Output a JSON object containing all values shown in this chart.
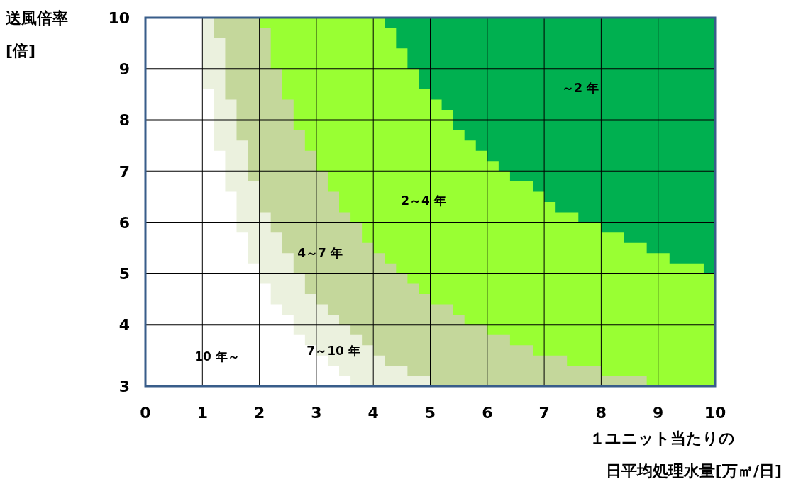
{
  "chart_data": {
    "type": "area",
    "xlabel": "１ユニット当たりの日平均処理水量[万㎥/日]",
    "ylabel": "送風倍率[倍]",
    "series": [
      {
        "color": "#00b050",
        "x": [
          0,
          10
        ],
        "values": [
          10,
          10
        ]
      },
      {
        "color": "#99ff33",
        "x": [
          2,
          4.2,
          4.2,
          4.4,
          4.4,
          4.6,
          4.6,
          4.8,
          4.8,
          5,
          5,
          5.2,
          5.2,
          5.4,
          5.4,
          5.6,
          5.6,
          5.8,
          5.8,
          6,
          6,
          6.2,
          6.2,
          6.4,
          6.4,
          6.8,
          6.8,
          7,
          7,
          7.2,
          7.2,
          7.6,
          7.6,
          8,
          8,
          8.4,
          8.4,
          8.8,
          8.8,
          9.2,
          9.2,
          9.8,
          9.8,
          10
        ],
        "values": [
          10,
          10,
          9.8,
          9.8,
          9.4,
          9.4,
          9,
          9,
          8.6,
          8.6,
          8.4,
          8.4,
          8.2,
          8.2,
          7.8,
          7.8,
          7.6,
          7.6,
          7.4,
          7.4,
          7.2,
          7.2,
          7,
          7,
          6.8,
          6.8,
          6.6,
          6.6,
          6.4,
          6.4,
          6.2,
          6.2,
          6,
          6,
          5.8,
          5.8,
          5.6,
          5.6,
          5.4,
          5.4,
          5.2,
          5.2,
          5,
          5
        ]
      },
      {
        "color": "#c4d79b",
        "x": [
          0,
          2,
          2,
          2.2,
          2.2,
          2.4,
          2.4,
          2.6,
          2.6,
          2.8,
          2.8,
          3,
          3,
          3.2,
          3.2,
          3.4,
          3.4,
          3.6,
          3.6,
          3.8,
          3.8,
          4,
          4,
          4.2,
          4.2,
          4.4,
          4.4,
          4.6,
          4.6,
          4.8,
          4.8,
          5,
          5,
          5.4,
          5.4,
          5.6,
          5.6,
          6,
          6,
          6.4,
          6.4,
          6.8,
          6.8,
          7.4,
          7.4,
          8,
          8,
          8.8,
          8.8
        ],
        "values": [
          10,
          10,
          9.8,
          9.8,
          9,
          9,
          8.4,
          8.4,
          7.8,
          7.8,
          7.4,
          7.4,
          7,
          7,
          6.6,
          6.6,
          6.2,
          6.2,
          6,
          6,
          5.6,
          5.6,
          5.4,
          5.4,
          5.2,
          5.2,
          5,
          5,
          4.8,
          4.8,
          4.6,
          4.6,
          4.4,
          4.4,
          4.2,
          4.2,
          4,
          4,
          3.8,
          3.8,
          3.6,
          3.6,
          3.4,
          3.4,
          3.2,
          3.2,
          3,
          3,
          2.8
        ]
      },
      {
        "color": "#ebf1de",
        "x": [
          0,
          1.2,
          1.2,
          1.4,
          1.4,
          1.6,
          1.6,
          1.8,
          1.8,
          2,
          2,
          2.2,
          2.2,
          2.4,
          2.4,
          2.6,
          2.6,
          2.8,
          2.8,
          3,
          3,
          3.2,
          3.2,
          3.4,
          3.4,
          3.6,
          3.6,
          3.8,
          3.8,
          4,
          4,
          4.2,
          4.2,
          4.6,
          4.6,
          5,
          5
        ],
        "values": [
          10,
          10,
          9.6,
          9.6,
          8.4,
          8.4,
          7.6,
          7.6,
          6.8,
          6.8,
          6.2,
          6.2,
          5.8,
          5.8,
          5.4,
          5.4,
          5,
          5,
          4.6,
          4.6,
          4.4,
          4.4,
          4.2,
          4.2,
          4,
          4,
          3.8,
          3.8,
          3.6,
          3.6,
          3.4,
          3.4,
          3.2,
          3.2,
          3,
          3,
          2.8
        ]
      },
      {
        "color": "#ffffff",
        "x": [
          0,
          1,
          1,
          1.2,
          1.2,
          1.4,
          1.4,
          1.6,
          1.6,
          1.8,
          1.8,
          2,
          2,
          2.2,
          2.2,
          2.4,
          2.4,
          2.6,
          2.6,
          2.8,
          2.8,
          3,
          3,
          3.2,
          3.2,
          3.4,
          3.4,
          3.6,
          3.6
        ],
        "values": [
          10,
          10,
          8.6,
          8.6,
          7.4,
          7.4,
          6.6,
          6.6,
          5.8,
          5.8,
          5.2,
          5.2,
          4.8,
          4.8,
          4.4,
          4.4,
          4.2,
          4.2,
          3.8,
          3.8,
          3.6,
          3.6,
          3.4,
          3.4,
          3.2,
          3.2,
          3,
          3,
          2.8
        ]
      }
    ],
    "xlim": [
      0,
      10
    ],
    "xticks": [
      0,
      1,
      2,
      3,
      4,
      5,
      6,
      7,
      8,
      9,
      10
    ],
    "ylim": [
      2.8,
      10
    ],
    "yticks": [
      {
        "value": 2.8,
        "label": "3"
      },
      4,
      5,
      6,
      7,
      8,
      9,
      10
    ],
    "grid": true,
    "annotations": [
      "～2 年",
      "2～4 年",
      "4～7 年",
      "7～10 年",
      "10 年～"
    ]
  }
}
